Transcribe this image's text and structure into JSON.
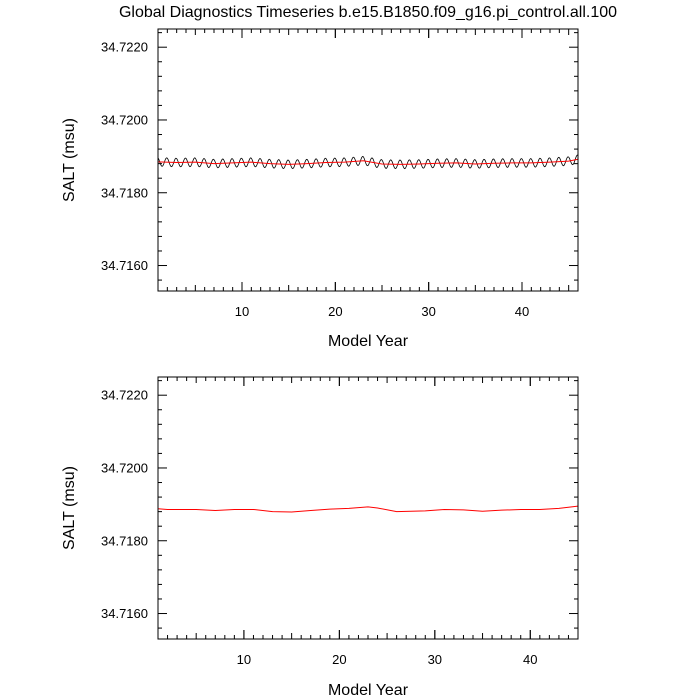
{
  "title": "Global Diagnostics Timeseries b.e15.B1850.f09_g16.pi_control.all.100",
  "chart_data": [
    {
      "type": "line",
      "xlabel": "Model Year",
      "ylabel": "SALT (msu)",
      "xlim": [
        1,
        46
      ],
      "ylim": [
        34.7153,
        34.7225
      ],
      "xticks": [
        10,
        20,
        30,
        40
      ],
      "yticks": [
        34.716,
        34.718,
        34.72,
        34.722
      ],
      "ytick_labels": [
        "34.7160",
        "34.7180",
        "34.7200",
        "34.7220"
      ],
      "grid": false,
      "series": [
        {
          "style": "monthly",
          "color": "#000000",
          "mean_x": [
            1,
            3,
            5,
            7,
            9,
            11,
            13,
            15,
            17,
            19,
            21,
            23,
            25,
            27,
            29,
            31,
            33,
            35,
            37,
            39,
            41,
            43,
            45,
            46
          ],
          "mean_y": [
            34.71885,
            34.71883,
            34.71884,
            34.7188,
            34.71882,
            34.71884,
            34.7188,
            34.71878,
            34.7188,
            34.71883,
            34.71884,
            34.71888,
            34.71879,
            34.71878,
            34.71879,
            34.71881,
            34.71882,
            34.71879,
            34.71881,
            34.71882,
            34.71882,
            34.71884,
            34.71887,
            34.71892
          ],
          "seasonal_amplitude": 0.00012
        },
        {
          "style": "annual",
          "color": "#ff0000",
          "x": [
            1,
            3,
            5,
            7,
            9,
            11,
            13,
            15,
            17,
            19,
            21,
            23,
            25,
            27,
            29,
            31,
            33,
            35,
            37,
            39,
            41,
            43,
            45,
            46
          ],
          "y": [
            34.71885,
            34.71883,
            34.71884,
            34.7188,
            34.71882,
            34.71884,
            34.7188,
            34.71878,
            34.7188,
            34.71883,
            34.71884,
            34.71888,
            34.71879,
            34.71878,
            34.71879,
            34.71881,
            34.71882,
            34.71879,
            34.71881,
            34.71882,
            34.71882,
            34.71884,
            34.71887,
            34.71892
          ]
        }
      ]
    },
    {
      "type": "line",
      "xlabel": "Model Year",
      "ylabel": "SALT (msu)",
      "xlim": [
        1,
        45
      ],
      "ylim": [
        34.7153,
        34.7225
      ],
      "xticks": [
        10,
        20,
        30,
        40
      ],
      "yticks": [
        34.716,
        34.718,
        34.72,
        34.722
      ],
      "ytick_labels": [
        "34.7160",
        "34.7180",
        "34.7200",
        "34.7220"
      ],
      "grid": false,
      "series": [
        {
          "style": "annual",
          "color": "#ff0000",
          "x": [
            1,
            2,
            5,
            7,
            9,
            11,
            13,
            15,
            17,
            19,
            21,
            23,
            24,
            26,
            29,
            31,
            33,
            35,
            37,
            39,
            41,
            43,
            45
          ],
          "y": [
            34.71888,
            34.71886,
            34.71886,
            34.71883,
            34.71886,
            34.71886,
            34.7188,
            34.71879,
            34.71883,
            34.71887,
            34.71889,
            34.71893,
            34.7189,
            34.7188,
            34.71882,
            34.71886,
            34.71885,
            34.71881,
            34.71884,
            34.71886,
            34.71886,
            34.71889,
            34.71895
          ]
        }
      ]
    }
  ]
}
